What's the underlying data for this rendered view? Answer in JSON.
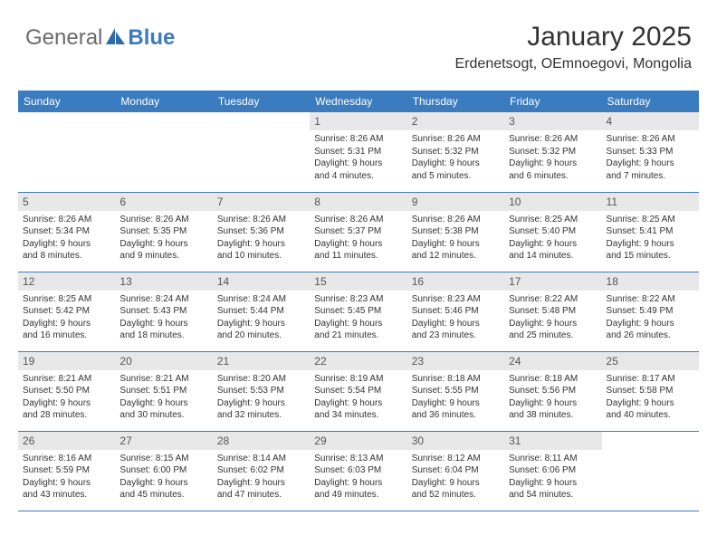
{
  "logo": {
    "general": "General",
    "blue": "Blue"
  },
  "header": {
    "month_title": "January 2025",
    "location": "Erdenetsogt, OEmnoegovi, Mongolia"
  },
  "colors": {
    "header_bg": "#3b7bbf",
    "header_text": "#ffffff",
    "daynum_bg": "#e8e8e8",
    "border": "#3b7bbf"
  },
  "day_headers": [
    "Sunday",
    "Monday",
    "Tuesday",
    "Wednesday",
    "Thursday",
    "Friday",
    "Saturday"
  ],
  "weeks": [
    [
      {
        "num": "",
        "lines": []
      },
      {
        "num": "",
        "lines": []
      },
      {
        "num": "",
        "lines": []
      },
      {
        "num": "1",
        "lines": [
          "Sunrise: 8:26 AM",
          "Sunset: 5:31 PM",
          "Daylight: 9 hours",
          "and 4 minutes."
        ]
      },
      {
        "num": "2",
        "lines": [
          "Sunrise: 8:26 AM",
          "Sunset: 5:32 PM",
          "Daylight: 9 hours",
          "and 5 minutes."
        ]
      },
      {
        "num": "3",
        "lines": [
          "Sunrise: 8:26 AM",
          "Sunset: 5:32 PM",
          "Daylight: 9 hours",
          "and 6 minutes."
        ]
      },
      {
        "num": "4",
        "lines": [
          "Sunrise: 8:26 AM",
          "Sunset: 5:33 PM",
          "Daylight: 9 hours",
          "and 7 minutes."
        ]
      }
    ],
    [
      {
        "num": "5",
        "lines": [
          "Sunrise: 8:26 AM",
          "Sunset: 5:34 PM",
          "Daylight: 9 hours",
          "and 8 minutes."
        ]
      },
      {
        "num": "6",
        "lines": [
          "Sunrise: 8:26 AM",
          "Sunset: 5:35 PM",
          "Daylight: 9 hours",
          "and 9 minutes."
        ]
      },
      {
        "num": "7",
        "lines": [
          "Sunrise: 8:26 AM",
          "Sunset: 5:36 PM",
          "Daylight: 9 hours",
          "and 10 minutes."
        ]
      },
      {
        "num": "8",
        "lines": [
          "Sunrise: 8:26 AM",
          "Sunset: 5:37 PM",
          "Daylight: 9 hours",
          "and 11 minutes."
        ]
      },
      {
        "num": "9",
        "lines": [
          "Sunrise: 8:26 AM",
          "Sunset: 5:38 PM",
          "Daylight: 9 hours",
          "and 12 minutes."
        ]
      },
      {
        "num": "10",
        "lines": [
          "Sunrise: 8:25 AM",
          "Sunset: 5:40 PM",
          "Daylight: 9 hours",
          "and 14 minutes."
        ]
      },
      {
        "num": "11",
        "lines": [
          "Sunrise: 8:25 AM",
          "Sunset: 5:41 PM",
          "Daylight: 9 hours",
          "and 15 minutes."
        ]
      }
    ],
    [
      {
        "num": "12",
        "lines": [
          "Sunrise: 8:25 AM",
          "Sunset: 5:42 PM",
          "Daylight: 9 hours",
          "and 16 minutes."
        ]
      },
      {
        "num": "13",
        "lines": [
          "Sunrise: 8:24 AM",
          "Sunset: 5:43 PM",
          "Daylight: 9 hours",
          "and 18 minutes."
        ]
      },
      {
        "num": "14",
        "lines": [
          "Sunrise: 8:24 AM",
          "Sunset: 5:44 PM",
          "Daylight: 9 hours",
          "and 20 minutes."
        ]
      },
      {
        "num": "15",
        "lines": [
          "Sunrise: 8:23 AM",
          "Sunset: 5:45 PM",
          "Daylight: 9 hours",
          "and 21 minutes."
        ]
      },
      {
        "num": "16",
        "lines": [
          "Sunrise: 8:23 AM",
          "Sunset: 5:46 PM",
          "Daylight: 9 hours",
          "and 23 minutes."
        ]
      },
      {
        "num": "17",
        "lines": [
          "Sunrise: 8:22 AM",
          "Sunset: 5:48 PM",
          "Daylight: 9 hours",
          "and 25 minutes."
        ]
      },
      {
        "num": "18",
        "lines": [
          "Sunrise: 8:22 AM",
          "Sunset: 5:49 PM",
          "Daylight: 9 hours",
          "and 26 minutes."
        ]
      }
    ],
    [
      {
        "num": "19",
        "lines": [
          "Sunrise: 8:21 AM",
          "Sunset: 5:50 PM",
          "Daylight: 9 hours",
          "and 28 minutes."
        ]
      },
      {
        "num": "20",
        "lines": [
          "Sunrise: 8:21 AM",
          "Sunset: 5:51 PM",
          "Daylight: 9 hours",
          "and 30 minutes."
        ]
      },
      {
        "num": "21",
        "lines": [
          "Sunrise: 8:20 AM",
          "Sunset: 5:53 PM",
          "Daylight: 9 hours",
          "and 32 minutes."
        ]
      },
      {
        "num": "22",
        "lines": [
          "Sunrise: 8:19 AM",
          "Sunset: 5:54 PM",
          "Daylight: 9 hours",
          "and 34 minutes."
        ]
      },
      {
        "num": "23",
        "lines": [
          "Sunrise: 8:18 AM",
          "Sunset: 5:55 PM",
          "Daylight: 9 hours",
          "and 36 minutes."
        ]
      },
      {
        "num": "24",
        "lines": [
          "Sunrise: 8:18 AM",
          "Sunset: 5:56 PM",
          "Daylight: 9 hours",
          "and 38 minutes."
        ]
      },
      {
        "num": "25",
        "lines": [
          "Sunrise: 8:17 AM",
          "Sunset: 5:58 PM",
          "Daylight: 9 hours",
          "and 40 minutes."
        ]
      }
    ],
    [
      {
        "num": "26",
        "lines": [
          "Sunrise: 8:16 AM",
          "Sunset: 5:59 PM",
          "Daylight: 9 hours",
          "and 43 minutes."
        ]
      },
      {
        "num": "27",
        "lines": [
          "Sunrise: 8:15 AM",
          "Sunset: 6:00 PM",
          "Daylight: 9 hours",
          "and 45 minutes."
        ]
      },
      {
        "num": "28",
        "lines": [
          "Sunrise: 8:14 AM",
          "Sunset: 6:02 PM",
          "Daylight: 9 hours",
          "and 47 minutes."
        ]
      },
      {
        "num": "29",
        "lines": [
          "Sunrise: 8:13 AM",
          "Sunset: 6:03 PM",
          "Daylight: 9 hours",
          "and 49 minutes."
        ]
      },
      {
        "num": "30",
        "lines": [
          "Sunrise: 8:12 AM",
          "Sunset: 6:04 PM",
          "Daylight: 9 hours",
          "and 52 minutes."
        ]
      },
      {
        "num": "31",
        "lines": [
          "Sunrise: 8:11 AM",
          "Sunset: 6:06 PM",
          "Daylight: 9 hours",
          "and 54 minutes."
        ]
      },
      {
        "num": "",
        "lines": []
      }
    ]
  ]
}
